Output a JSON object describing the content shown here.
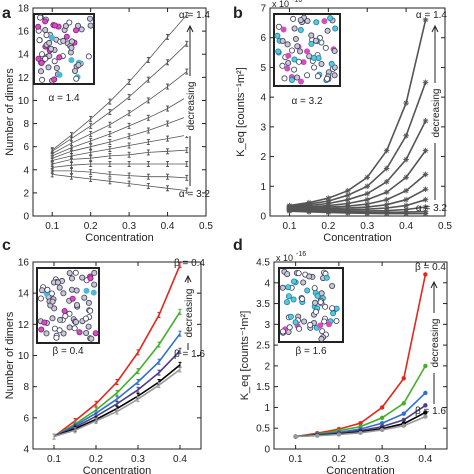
{
  "chart_data": [
    {
      "panel": "a",
      "type": "line",
      "xlabel": "Concentration",
      "ylabel": "Number of dimers",
      "xlim": [
        0.05,
        0.5
      ],
      "ylim": [
        0,
        18
      ],
      "xticks": [
        0.1,
        0.2,
        0.3,
        0.4,
        0.5
      ],
      "xtick_labels": [
        "0.1",
        "0.2",
        "0.3",
        "0.4",
        "0.5"
      ],
      "yticks": [
        0,
        2,
        4,
        6,
        8,
        10,
        12,
        14,
        16,
        18
      ],
      "ytick_labels": [
        "0",
        "2",
        "4",
        "6",
        "8",
        "10",
        "12",
        "14",
        "16",
        "18"
      ],
      "marker": "errorbar",
      "colors": [
        "#555555"
      ],
      "x": [
        0.1,
        0.15,
        0.2,
        0.25,
        0.3,
        0.35,
        0.4,
        0.45
      ],
      "series": [
        {
          "values": [
            5.7,
            7.0,
            8.4,
            9.9,
            11.6,
            13.5,
            15.5,
            17.4
          ]
        },
        {
          "values": [
            5.6,
            6.7,
            7.8,
            9.0,
            10.3,
            11.8,
            13.3,
            14.9
          ]
        },
        {
          "values": [
            5.4,
            6.3,
            7.1,
            7.9,
            8.9,
            10.0,
            11.2,
            12.5
          ]
        },
        {
          "values": [
            5.2,
            5.9,
            6.5,
            7.1,
            7.8,
            8.5,
            9.3,
            10.3
          ]
        },
        {
          "values": [
            5.0,
            5.6,
            6.0,
            6.4,
            6.9,
            7.4,
            8.0,
            8.6
          ]
        },
        {
          "values": [
            4.8,
            5.2,
            5.5,
            5.8,
            6.1,
            6.4,
            6.7,
            7.0
          ]
        },
        {
          "values": [
            4.5,
            4.9,
            5.0,
            5.2,
            5.3,
            5.5,
            5.6,
            5.7
          ]
        },
        {
          "values": [
            4.2,
            4.4,
            4.5,
            4.5,
            4.5,
            4.5,
            4.5,
            4.5
          ]
        },
        {
          "values": [
            3.9,
            3.9,
            3.8,
            3.6,
            3.5,
            3.4,
            3.4,
            3.3
          ]
        },
        {
          "values": [
            3.6,
            3.4,
            3.2,
            3.0,
            2.8,
            2.6,
            2.4,
            2.2
          ]
        }
      ],
      "annotations": {
        "top": "α = 1.4",
        "bottom": "α = 3.2",
        "direction": "decreasing",
        "inset_label": "α = 1.4"
      }
    },
    {
      "panel": "b",
      "type": "line",
      "xlabel": "Concentration",
      "ylabel": "K_eq [counts⁻¹m²]",
      "exponent_label": "x 10",
      "exponent_power": "-16",
      "xlim": [
        0.05,
        0.5
      ],
      "ylim": [
        0,
        7
      ],
      "xticks": [
        0.1,
        0.2,
        0.3,
        0.4,
        0.5
      ],
      "xtick_labels": [
        "0.1",
        "0.2",
        "0.3",
        "0.4",
        "0.5"
      ],
      "yticks": [
        0,
        1,
        2,
        3,
        4,
        5,
        6,
        7
      ],
      "ytick_labels": [
        "0",
        "1",
        "2",
        "3",
        "4",
        "5",
        "6",
        "7"
      ],
      "marker": "asterisk",
      "colors": [
        "#555555"
      ],
      "x": [
        0.1,
        0.15,
        0.2,
        0.25,
        0.3,
        0.35,
        0.4,
        0.45
      ],
      "series": [
        {
          "values": [
            0.35,
            0.45,
            0.6,
            0.85,
            1.3,
            2.2,
            3.8,
            6.6
          ]
        },
        {
          "values": [
            0.32,
            0.4,
            0.5,
            0.7,
            1.0,
            1.6,
            2.7,
            4.5
          ]
        },
        {
          "values": [
            0.3,
            0.35,
            0.42,
            0.55,
            0.75,
            1.15,
            1.9,
            3.2
          ]
        },
        {
          "values": [
            0.28,
            0.3,
            0.35,
            0.42,
            0.55,
            0.8,
            1.3,
            2.2
          ]
        },
        {
          "values": [
            0.26,
            0.27,
            0.3,
            0.33,
            0.4,
            0.55,
            0.85,
            1.4
          ]
        },
        {
          "values": [
            0.24,
            0.24,
            0.25,
            0.27,
            0.3,
            0.38,
            0.55,
            0.9
          ]
        },
        {
          "values": [
            0.22,
            0.21,
            0.21,
            0.22,
            0.23,
            0.27,
            0.35,
            0.55
          ]
        },
        {
          "values": [
            0.2,
            0.18,
            0.17,
            0.17,
            0.17,
            0.18,
            0.22,
            0.3
          ]
        },
        {
          "values": [
            0.18,
            0.16,
            0.14,
            0.13,
            0.12,
            0.12,
            0.13,
            0.15
          ]
        },
        {
          "values": [
            0.16,
            0.14,
            0.12,
            0.1,
            0.09,
            0.08,
            0.08,
            0.08
          ]
        }
      ],
      "annotations": {
        "top": "α = 1.4",
        "bottom": "α = 3.2",
        "direction": "decreasing",
        "inset_label": "α = 3.2"
      }
    },
    {
      "panel": "c",
      "type": "line",
      "xlabel": "Concentration",
      "ylabel": "Number of dimers",
      "xlim": [
        0.05,
        0.45
      ],
      "ylim": [
        4,
        16
      ],
      "xticks": [
        0.1,
        0.2,
        0.3,
        0.4
      ],
      "xtick_labels": [
        "0.1",
        "0.2",
        "0.3",
        "0.4"
      ],
      "yticks": [
        4,
        6,
        8,
        10,
        12,
        14,
        16
      ],
      "ytick_labels": [
        "4",
        "6",
        "8",
        "10",
        "12",
        "14",
        "16"
      ],
      "marker": "errorbar",
      "x": [
        0.1,
        0.15,
        0.2,
        0.25,
        0.3,
        0.35,
        0.4
      ],
      "series": [
        {
          "color": "#e3271c",
          "values": [
            4.8,
            5.8,
            6.9,
            8.3,
            10.2,
            12.6,
            15.8
          ]
        },
        {
          "color": "#43b02a",
          "values": [
            4.8,
            5.6,
            6.5,
            7.6,
            9.0,
            10.7,
            12.8
          ]
        },
        {
          "color": "#2f6fd0",
          "values": [
            4.8,
            5.5,
            6.3,
            7.2,
            8.3,
            9.6,
            11.4
          ]
        },
        {
          "color": "#4a3f8a",
          "values": [
            4.8,
            5.4,
            6.1,
            6.9,
            7.8,
            8.9,
            10.3
          ]
        },
        {
          "color": "#000000",
          "values": [
            4.8,
            5.3,
            5.9,
            6.6,
            7.4,
            8.3,
            9.4
          ]
        },
        {
          "color": "#999999",
          "values": [
            4.8,
            5.2,
            5.8,
            6.4,
            7.2,
            8.1,
            9.1
          ]
        }
      ],
      "annotations": {
        "top": "β = 0.4",
        "bottom": "β = 1.6",
        "direction": "decreasing",
        "inset_label": "β = 0.4"
      }
    },
    {
      "panel": "d",
      "type": "line",
      "xlabel": "Concentration",
      "ylabel": "K_eq [counts⁻¹m²]",
      "exponent_label": "x 10",
      "exponent_power": "-16",
      "xlim": [
        0.05,
        0.45
      ],
      "ylim": [
        0,
        4.5
      ],
      "xticks": [
        0.1,
        0.2,
        0.3,
        0.4
      ],
      "xtick_labels": [
        "0.1",
        "0.2",
        "0.3",
        "0.4"
      ],
      "yticks": [
        0,
        0.5,
        1,
        1.5,
        2,
        2.5,
        3,
        3.5,
        4,
        4.5
      ],
      "ytick_labels": [
        "0",
        "0.5",
        "1",
        "1.5",
        "2",
        "2.5",
        "3",
        "3.5",
        "4",
        "4.5"
      ],
      "marker": "dot",
      "x": [
        0.1,
        0.15,
        0.2,
        0.25,
        0.3,
        0.35,
        0.4
      ],
      "series": [
        {
          "color": "#e3271c",
          "values": [
            0.3,
            0.38,
            0.48,
            0.62,
            1.0,
            1.7,
            4.2
          ]
        },
        {
          "color": "#43b02a",
          "values": [
            0.3,
            0.36,
            0.44,
            0.54,
            0.75,
            1.1,
            2.0
          ]
        },
        {
          "color": "#2f6fd0",
          "values": [
            0.3,
            0.35,
            0.4,
            0.48,
            0.62,
            0.85,
            1.35
          ]
        },
        {
          "color": "#4a3f8a",
          "values": [
            0.3,
            0.34,
            0.38,
            0.44,
            0.54,
            0.7,
            1.05
          ]
        },
        {
          "color": "#000000",
          "values": [
            0.3,
            0.33,
            0.36,
            0.41,
            0.49,
            0.61,
            0.88
          ]
        },
        {
          "color": "#999999",
          "values": [
            0.3,
            0.32,
            0.35,
            0.39,
            0.46,
            0.56,
            0.78
          ]
        }
      ],
      "annotations": {
        "top": "β = 0.4",
        "bottom": "β = 1.6",
        "direction": "decreasing",
        "inset_label": "β = 1.6"
      }
    }
  ]
}
